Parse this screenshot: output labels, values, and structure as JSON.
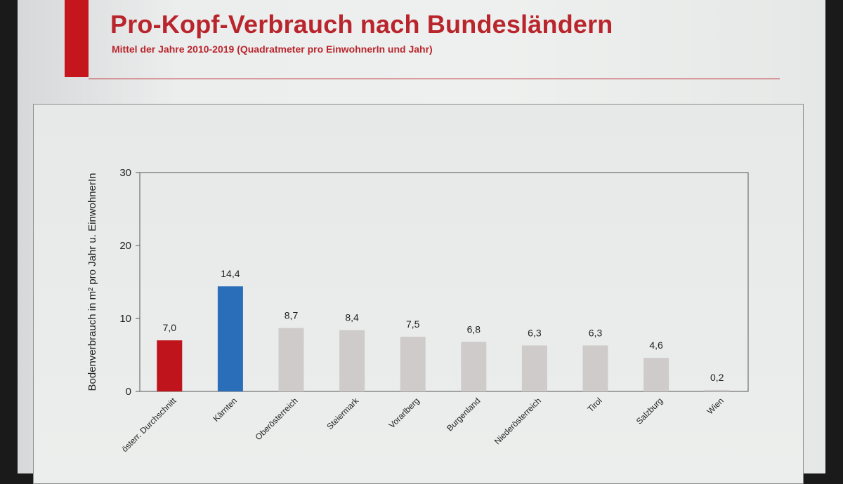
{
  "slide": {
    "title": "Pro-Kopf-Verbrauch nach Bundesländern",
    "subtitle": "Mittel der Jahre 2010-2019 (Quadratmeter pro EinwohnerIn und Jahr)"
  },
  "colors": {
    "title": "#b9252c",
    "accent_bar": "#c4161c",
    "bar_red": "#c0141c",
    "bar_blue": "#2a6db8",
    "bar_grey": "#cfcbcb"
  },
  "chart_data": {
    "type": "bar",
    "ylabel": "Bodenverbrauch in m² pro Jahr u. EinwohnerIn",
    "xlabel": "",
    "ylim": [
      0,
      30
    ],
    "yticks": [
      0,
      10,
      20,
      30
    ],
    "ytick_labels": [
      "0",
      "10",
      "20",
      "30"
    ],
    "grid": false,
    "categories": [
      "österr. Durchschnitt",
      "Kärnten",
      "Oberösterreich",
      "Steiermark",
      "Vorarlberg",
      "Burgenland",
      "Niederösterreich",
      "Tirol",
      "Salzburg",
      "Wien"
    ],
    "values": [
      7.0,
      14.4,
      8.7,
      8.4,
      7.5,
      6.8,
      6.3,
      6.3,
      4.6,
      0.2
    ],
    "value_labels": [
      "7,0",
      "14,4",
      "8,7",
      "8,4",
      "7,5",
      "6,8",
      "6,3",
      "6,3",
      "4,6",
      "0,2"
    ],
    "bar_colors": [
      "#c0141c",
      "#2a6db8",
      "#cfcbcb",
      "#cfcbcb",
      "#cfcbcb",
      "#cfcbcb",
      "#cfcbcb",
      "#cfcbcb",
      "#cfcbcb",
      "#cfcbcb"
    ]
  }
}
